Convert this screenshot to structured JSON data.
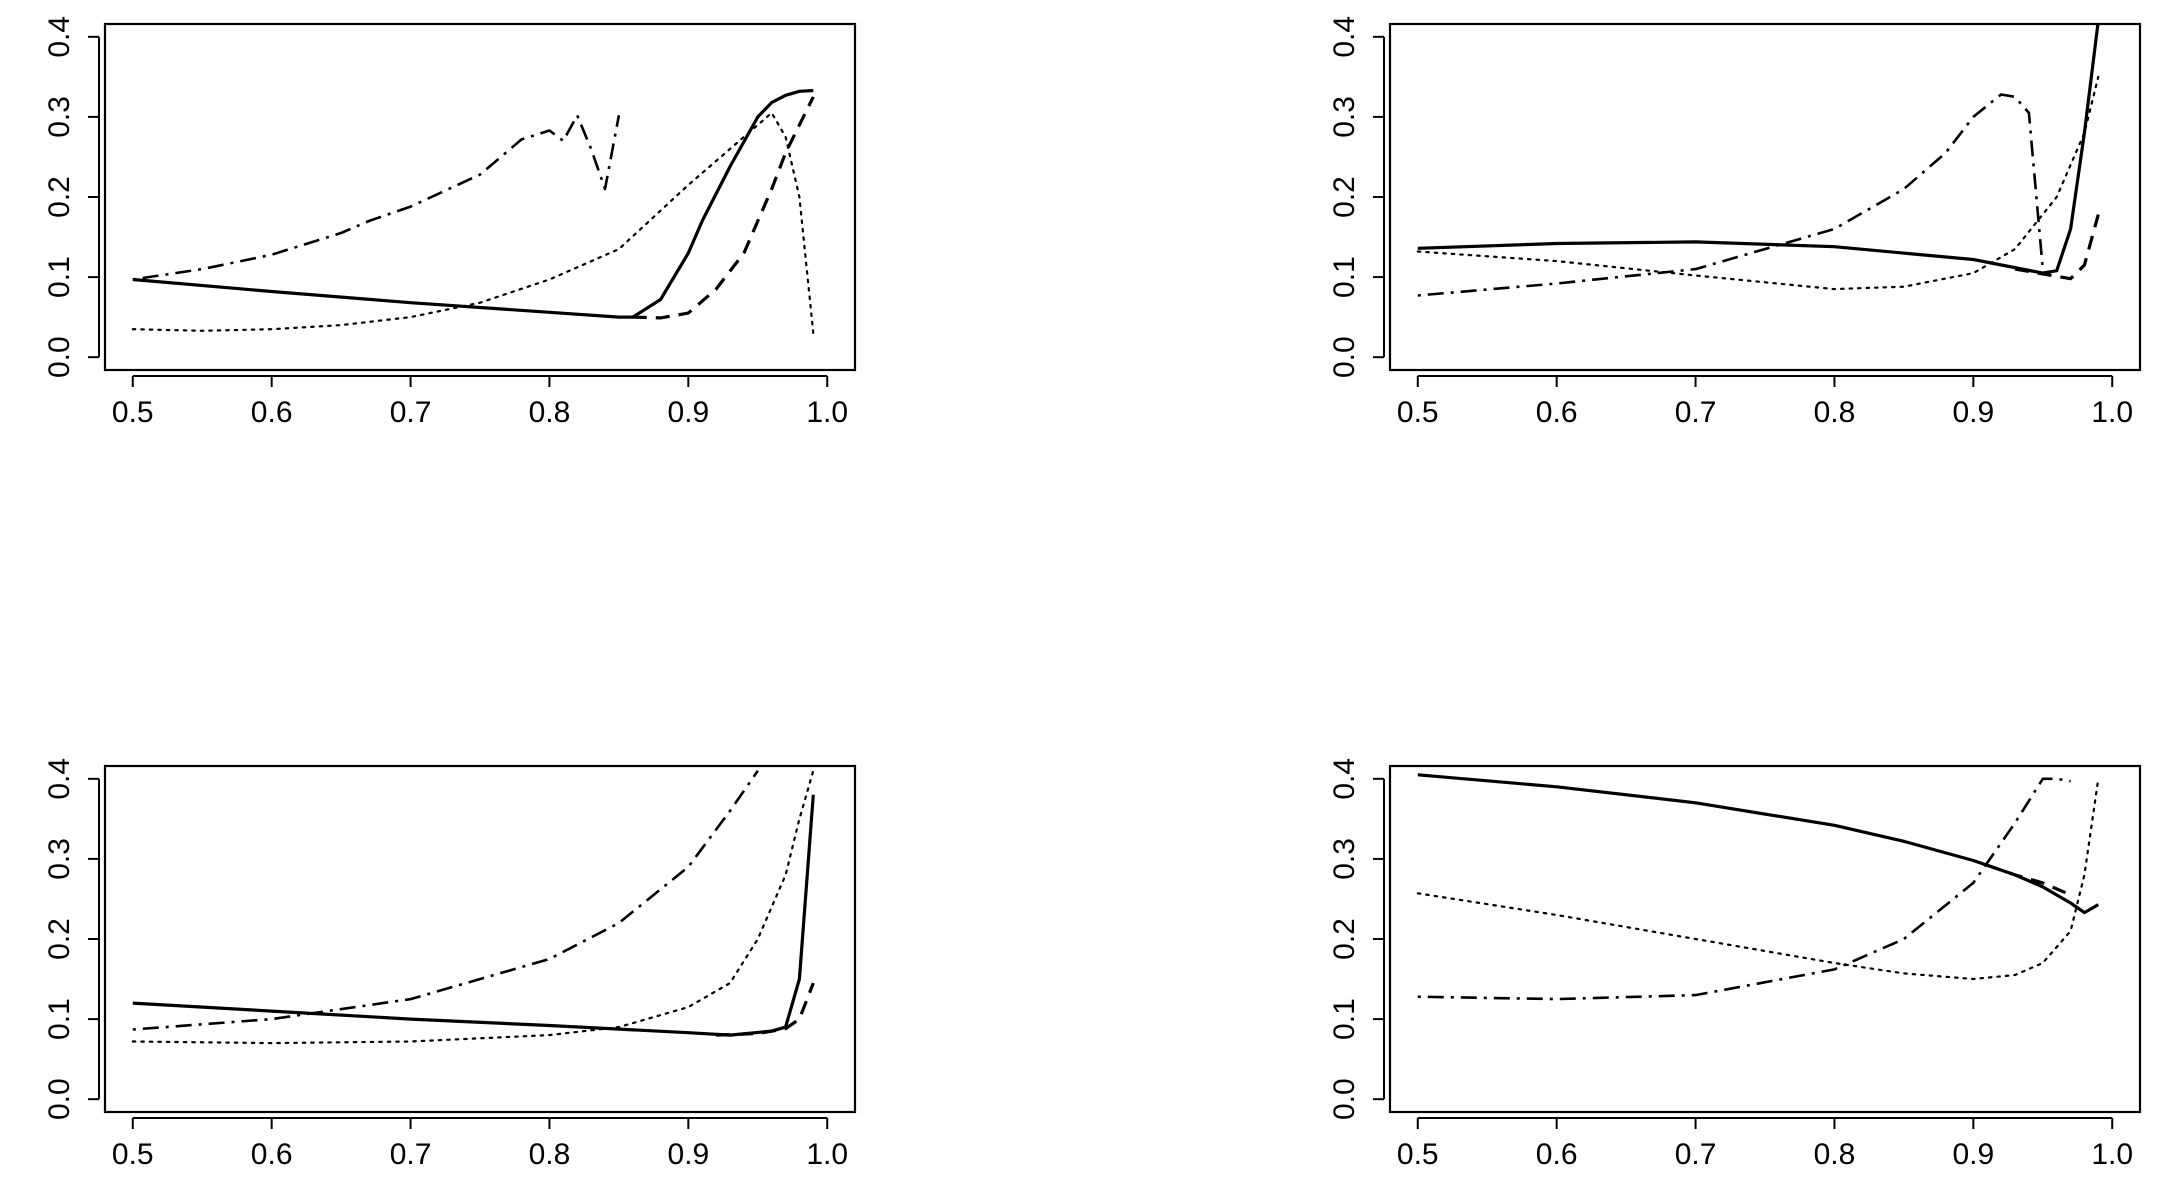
{
  "colors": {
    "line": "#000000",
    "background": "#ffffff"
  },
  "chart_data": [
    {
      "type": "line",
      "position": "top-left",
      "title": "",
      "xlabel": "",
      "ylabel": "",
      "xlim": [
        0.5,
        1.0
      ],
      "ylim": [
        0.0,
        0.4
      ],
      "xticks": [
        0.5,
        0.6,
        0.7,
        0.8,
        0.9,
        1.0
      ],
      "xtick_labels": [
        "0.5",
        "0.6",
        "0.7",
        "0.8",
        "0.9",
        "1.0"
      ],
      "yticks": [
        0.0,
        0.1,
        0.2,
        0.3,
        0.4
      ],
      "ytick_labels": [
        "0.0",
        "0.1",
        "0.2",
        "0.3",
        "0.4"
      ],
      "legend": "none",
      "series": [
        {
          "name": "solid",
          "style": "solid",
          "x": [
            0.5,
            0.6,
            0.7,
            0.8,
            0.85,
            0.86,
            0.88,
            0.9,
            0.91,
            0.93,
            0.95,
            0.96,
            0.97,
            0.98,
            0.99
          ],
          "y": [
            0.097,
            0.082,
            0.068,
            0.056,
            0.05,
            0.05,
            0.072,
            0.13,
            0.17,
            0.238,
            0.3,
            0.318,
            0.327,
            0.332,
            0.333
          ]
        },
        {
          "name": "dashed",
          "style": "dashed",
          "x": [
            0.86,
            0.88,
            0.9,
            0.92,
            0.94,
            0.96,
            0.97,
            0.98,
            0.99
          ],
          "y": [
            0.05,
            0.049,
            0.055,
            0.085,
            0.13,
            0.21,
            0.255,
            0.29,
            0.325
          ]
        },
        {
          "name": "dotted",
          "style": "dotted",
          "x": [
            0.5,
            0.55,
            0.6,
            0.65,
            0.7,
            0.75,
            0.8,
            0.85,
            0.88,
            0.9,
            0.92,
            0.94,
            0.96,
            0.97,
            0.98,
            0.99
          ],
          "y": [
            0.035,
            0.033,
            0.035,
            0.04,
            0.05,
            0.068,
            0.097,
            0.135,
            0.183,
            0.215,
            0.245,
            0.275,
            0.305,
            0.275,
            0.2,
            0.03
          ]
        },
        {
          "name": "dot-dash",
          "style": "dotdash",
          "x": [
            0.5,
            0.55,
            0.6,
            0.65,
            0.67,
            0.7,
            0.75,
            0.78,
            0.8,
            0.81,
            0.82,
            0.83,
            0.84,
            0.85
          ],
          "y": [
            0.097,
            0.11,
            0.128,
            0.155,
            0.17,
            0.188,
            0.228,
            0.272,
            0.283,
            0.27,
            0.302,
            0.26,
            0.21,
            0.302
          ]
        }
      ]
    },
    {
      "type": "line",
      "position": "top-right",
      "title": "",
      "xlabel": "",
      "ylabel": "",
      "xlim": [
        0.5,
        1.0
      ],
      "ylim": [
        0.0,
        0.4
      ],
      "xticks": [
        0.5,
        0.6,
        0.7,
        0.8,
        0.9,
        1.0
      ],
      "xtick_labels": [
        "0.5",
        "0.6",
        "0.7",
        "0.8",
        "0.9",
        "1.0"
      ],
      "yticks": [
        0.0,
        0.1,
        0.2,
        0.3,
        0.4
      ],
      "ytick_labels": [
        "0.0",
        "0.1",
        "0.2",
        "0.3",
        "0.4"
      ],
      "legend": "none",
      "series": [
        {
          "name": "solid",
          "style": "solid",
          "x": [
            0.5,
            0.6,
            0.7,
            0.8,
            0.9,
            0.95,
            0.96,
            0.97,
            0.98,
            0.99
          ],
          "y": [
            0.136,
            0.142,
            0.144,
            0.138,
            0.122,
            0.105,
            0.108,
            0.16,
            0.28,
            0.42
          ]
        },
        {
          "name": "dashed",
          "style": "dashed",
          "x": [
            0.93,
            0.95,
            0.97,
            0.98,
            0.99
          ],
          "y": [
            0.11,
            0.104,
            0.098,
            0.115,
            0.178
          ]
        },
        {
          "name": "dotted",
          "style": "dotted",
          "x": [
            0.5,
            0.6,
            0.7,
            0.8,
            0.85,
            0.9,
            0.93,
            0.96,
            0.98,
            0.99
          ],
          "y": [
            0.132,
            0.12,
            0.102,
            0.085,
            0.088,
            0.105,
            0.135,
            0.2,
            0.28,
            0.35
          ]
        },
        {
          "name": "dot-dash",
          "style": "dotdash",
          "x": [
            0.5,
            0.6,
            0.7,
            0.8,
            0.85,
            0.88,
            0.9,
            0.92,
            0.93,
            0.94,
            0.95
          ],
          "y": [
            0.077,
            0.092,
            0.11,
            0.16,
            0.21,
            0.255,
            0.3,
            0.328,
            0.325,
            0.305,
            0.11
          ]
        }
      ]
    },
    {
      "type": "line",
      "position": "bottom-left",
      "title": "",
      "xlabel": "",
      "ylabel": "",
      "xlim": [
        0.5,
        1.0
      ],
      "ylim": [
        0.0,
        0.4
      ],
      "xticks": [
        0.5,
        0.6,
        0.7,
        0.8,
        0.9,
        1.0
      ],
      "xtick_labels": [
        "0.5",
        "0.6",
        "0.7",
        "0.8",
        "0.9",
        "1.0"
      ],
      "yticks": [
        0.0,
        0.1,
        0.2,
        0.3,
        0.4
      ],
      "ytick_labels": [
        "0.0",
        "0.1",
        "0.2",
        "0.3",
        "0.4"
      ],
      "legend": "none",
      "series": [
        {
          "name": "solid",
          "style": "solid",
          "x": [
            0.5,
            0.6,
            0.7,
            0.8,
            0.9,
            0.93,
            0.96,
            0.97,
            0.98,
            0.99
          ],
          "y": [
            0.12,
            0.11,
            0.1,
            0.092,
            0.083,
            0.08,
            0.085,
            0.09,
            0.15,
            0.38
          ]
        },
        {
          "name": "dashed",
          "style": "dashed",
          "x": [
            0.92,
            0.95,
            0.97,
            0.98,
            0.99
          ],
          "y": [
            0.08,
            0.082,
            0.088,
            0.1,
            0.145
          ]
        },
        {
          "name": "dotted",
          "style": "dotted",
          "x": [
            0.5,
            0.6,
            0.7,
            0.8,
            0.85,
            0.9,
            0.93,
            0.95,
            0.97,
            0.98,
            0.99
          ],
          "y": [
            0.072,
            0.07,
            0.072,
            0.08,
            0.09,
            0.115,
            0.145,
            0.2,
            0.28,
            0.35,
            0.41
          ]
        },
        {
          "name": "dot-dash",
          "style": "dotdash",
          "x": [
            0.5,
            0.6,
            0.7,
            0.8,
            0.85,
            0.9,
            0.93,
            0.95
          ],
          "y": [
            0.087,
            0.1,
            0.125,
            0.175,
            0.22,
            0.29,
            0.36,
            0.41
          ]
        }
      ]
    },
    {
      "type": "line",
      "position": "bottom-right",
      "title": "",
      "xlabel": "",
      "ylabel": "",
      "xlim": [
        0.5,
        1.0
      ],
      "ylim": [
        0.0,
        0.4
      ],
      "xticks": [
        0.5,
        0.6,
        0.7,
        0.8,
        0.9,
        1.0
      ],
      "xtick_labels": [
        "0.5",
        "0.6",
        "0.7",
        "0.8",
        "0.9",
        "1.0"
      ],
      "yticks": [
        0.0,
        0.1,
        0.2,
        0.3,
        0.4
      ],
      "ytick_labels": [
        "0.0",
        "0.1",
        "0.2",
        "0.3",
        "0.4"
      ],
      "legend": "none",
      "series": [
        {
          "name": "solid",
          "style": "solid",
          "x": [
            0.5,
            0.6,
            0.7,
            0.8,
            0.85,
            0.9,
            0.93,
            0.95,
            0.97,
            0.98,
            0.99
          ],
          "y": [
            0.405,
            0.39,
            0.37,
            0.342,
            0.322,
            0.298,
            0.28,
            0.265,
            0.245,
            0.233,
            0.243
          ]
        },
        {
          "name": "dashed",
          "style": "dashed",
          "x": [
            0.91,
            0.93,
            0.95,
            0.97
          ],
          "y": [
            0.292,
            0.28,
            0.27,
            0.255
          ]
        },
        {
          "name": "dotted",
          "style": "dotted",
          "x": [
            0.5,
            0.6,
            0.7,
            0.8,
            0.85,
            0.9,
            0.93,
            0.95,
            0.97,
            0.98,
            0.99
          ],
          "y": [
            0.257,
            0.23,
            0.2,
            0.17,
            0.157,
            0.15,
            0.155,
            0.17,
            0.21,
            0.28,
            0.4
          ]
        },
        {
          "name": "dot-dash",
          "style": "dotdash",
          "x": [
            0.5,
            0.6,
            0.7,
            0.8,
            0.85,
            0.9,
            0.93,
            0.95,
            0.96,
            0.97
          ],
          "y": [
            0.128,
            0.125,
            0.13,
            0.162,
            0.2,
            0.27,
            0.345,
            0.4,
            0.4,
            0.397
          ]
        }
      ]
    }
  ]
}
